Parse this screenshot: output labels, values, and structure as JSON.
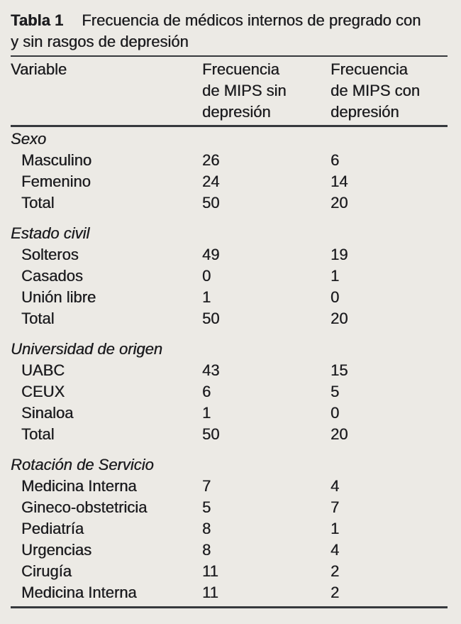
{
  "caption": {
    "label": "Tabla 1",
    "title": "Frecuencia de médicos internos de pregrado con\ny sin rasgos de depresión"
  },
  "columns": [
    "Variable",
    "Frecuencia\nde MIPS sin\ndepresión",
    "Frecuencia\nde MIPS con\ndepresión"
  ],
  "sections": [
    {
      "name": "Sexo",
      "rows": [
        [
          "Masculino",
          "26",
          "6"
        ],
        [
          "Femenino",
          "24",
          "14"
        ],
        [
          "Total",
          "50",
          "20"
        ]
      ]
    },
    {
      "name": "Estado civil",
      "rows": [
        [
          "Solteros",
          "49",
          "19"
        ],
        [
          "Casados",
          "0",
          "1"
        ],
        [
          "Unión libre",
          "1",
          "0"
        ],
        [
          "Total",
          "50",
          "20"
        ]
      ]
    },
    {
      "name": "Universidad de origen",
      "rows": [
        [
          "UABC",
          "43",
          "15"
        ],
        [
          "CEUX",
          "6",
          "5"
        ],
        [
          "Sinaloa",
          "1",
          "0"
        ],
        [
          "Total",
          "50",
          "20"
        ]
      ]
    },
    {
      "name": "Rotación de Servicio",
      "rows": [
        [
          "Medicina Interna",
          "7",
          "4"
        ],
        [
          "Gineco-obstetricia",
          "5",
          "7"
        ],
        [
          "Pediatría",
          "8",
          "1"
        ],
        [
          "Urgencias",
          "8",
          "4"
        ],
        [
          "Cirugía",
          "11",
          "2"
        ],
        [
          "Medicina Interna",
          "11",
          "2"
        ]
      ]
    }
  ],
  "colors": {
    "background": "#ECEAE5",
    "text": "#1D1D20",
    "rule": "#36393D"
  }
}
